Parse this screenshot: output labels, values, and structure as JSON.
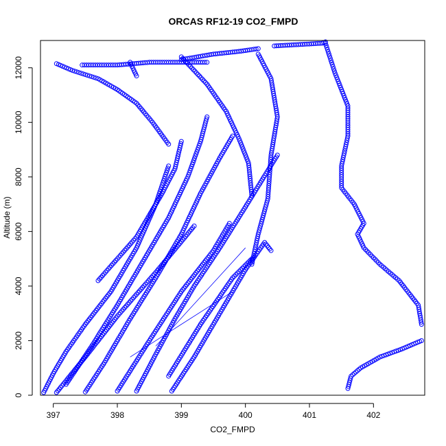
{
  "chart_data": {
    "type": "scatter",
    "title": "ORCAS RF12-19 CO2_FMPD",
    "xlabel": "CO2_FMPD",
    "ylabel": "Altitude (m)",
    "xlim": [
      396.8,
      402.8
    ],
    "ylim": [
      0,
      13000
    ],
    "xticks": [
      397,
      398,
      399,
      400,
      401,
      402
    ],
    "yticks": [
      0,
      2000,
      4000,
      6000,
      8000,
      10000,
      12000
    ],
    "xtick_labels": [
      "397",
      "398",
      "399",
      "400",
      "401",
      "402"
    ],
    "ytick_labels": [
      "0",
      "2000",
      "4000",
      "6000",
      "8000",
      "10000",
      "12000"
    ],
    "grid": false,
    "marker": "open-circle",
    "color": "#0000ff",
    "series": [
      {
        "x": [
          396.85,
          397.0,
          397.2,
          397.5,
          397.9,
          398.3,
          398.6,
          398.8
        ],
        "y": [
          100,
          800,
          1600,
          2600,
          3800,
          5400,
          7000,
          8400
        ]
      },
      {
        "x": [
          398.8,
          398.55,
          398.3,
          398.0,
          397.7,
          397.3,
          397.05
        ],
        "y": [
          9200,
          10000,
          10700,
          11200,
          11600,
          11900,
          12150
        ]
      },
      {
        "x": [
          397.05,
          397.5,
          398.0,
          398.6,
          399.2
        ],
        "y": [
          100,
          1400,
          2900,
          4500,
          6200
        ]
      },
      {
        "x": [
          397.2,
          397.6,
          398.0,
          398.4,
          398.8,
          399.1,
          399.3,
          399.4
        ],
        "y": [
          400,
          1800,
          3300,
          4900,
          6500,
          8000,
          9300,
          10200
        ]
      },
      {
        "x": [
          397.5,
          397.8,
          398.2,
          398.6,
          399.0,
          399.3,
          399.6,
          399.8
        ],
        "y": [
          120,
          1200,
          2800,
          4300,
          5900,
          7400,
          8700,
          9500
        ]
      },
      {
        "x": [
          397.45,
          398.0,
          398.5,
          399.0,
          399.4
        ],
        "y": [
          12100,
          12100,
          12200,
          12200,
          12200
        ]
      },
      {
        "x": [
          398.2,
          398.3
        ],
        "y": [
          12200,
          11700
        ]
      },
      {
        "x": [
          397.7,
          398.0,
          398.3,
          398.5,
          398.7,
          398.9,
          399.0
        ],
        "y": [
          4200,
          5000,
          5800,
          6600,
          7400,
          8300,
          9300
        ]
      },
      {
        "x": [
          398.0,
          398.5,
          399.0,
          399.5,
          399.75
        ],
        "y": [
          150,
          2000,
          3800,
          5300,
          6300
        ]
      },
      {
        "x": [
          398.3,
          398.6,
          398.9,
          399.2,
          399.6,
          400.0,
          400.5
        ],
        "y": [
          150,
          1500,
          2800,
          4000,
          5400,
          6900,
          8800
        ]
      },
      {
        "x": [
          399.0,
          399.4,
          399.7,
          399.9,
          400.05,
          400.1
        ],
        "y": [
          12400,
          11400,
          10400,
          9400,
          8500,
          7300
        ]
      },
      {
        "x": [
          398.85,
          399.2,
          399.6,
          400.0,
          400.3,
          400.4
        ],
        "y": [
          150,
          1400,
          3000,
          4600,
          5600,
          5300
        ]
      },
      {
        "x": [
          399.0,
          399.5,
          399.9,
          400.2
        ],
        "y": [
          12300,
          12500,
          12600,
          12700
        ]
      },
      {
        "x": [
          400.2,
          400.4,
          400.5,
          400.4,
          400.35,
          400.2,
          400.1
        ],
        "y": [
          12500,
          11600,
          10200,
          8800,
          7200,
          5900,
          4800
        ]
      },
      {
        "x": [
          400.45,
          401.2,
          401.25
        ],
        "y": [
          12800,
          12900,
          12950
        ]
      },
      {
        "x": [
          401.25,
          401.4,
          401.6,
          401.6,
          401.5,
          401.5,
          401.7,
          401.85,
          401.75,
          401.85,
          402.1,
          402.4,
          402.7,
          402.75
        ],
        "y": [
          12900,
          11800,
          10600,
          9500,
          8400,
          7600,
          7000,
          6300,
          5900,
          5400,
          4800,
          4200,
          3300,
          2600
        ]
      },
      {
        "x": [
          402.75,
          402.45,
          402.1,
          401.8,
          401.65,
          401.6
        ],
        "y": [
          2000,
          1700,
          1400,
          1000,
          700,
          250
        ]
      },
      {
        "x": [
          398.8,
          399.3,
          399.8,
          400.1
        ],
        "y": [
          700,
          2600,
          4300,
          5000
        ]
      }
    ],
    "line_traces": [
      {
        "x": [
          398.2,
          399.8
        ],
        "y": [
          1400,
          3800
        ]
      },
      {
        "x": [
          398.6,
          400.0
        ],
        "y": [
          1800,
          5400
        ]
      }
    ]
  }
}
